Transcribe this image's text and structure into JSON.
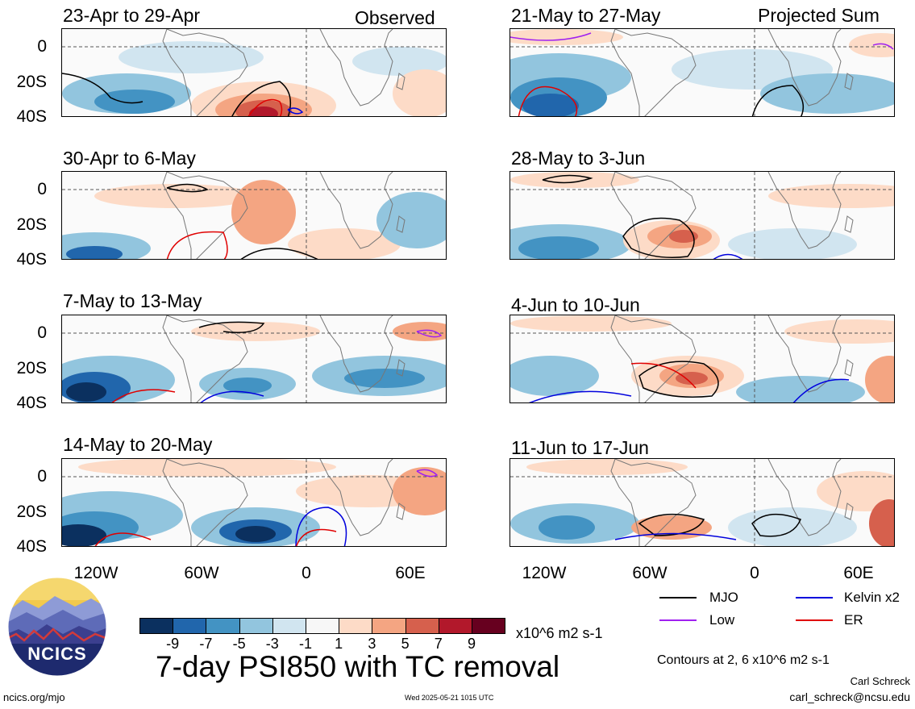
{
  "panels": [
    {
      "id": "p1",
      "title": "23-Apr to 29-Apr",
      "label": "Observed"
    },
    {
      "id": "p2",
      "title": "30-Apr to 6-May",
      "label": ""
    },
    {
      "id": "p3",
      "title": "7-May to 13-May",
      "label": ""
    },
    {
      "id": "p4",
      "title": "14-May to 20-May",
      "label": ""
    },
    {
      "id": "p5",
      "title": "21-May to 27-May",
      "label": "Projected Sum"
    },
    {
      "id": "p6",
      "title": "28-May to 3-Jun",
      "label": ""
    },
    {
      "id": "p7",
      "title": "4-Jun to 10-Jun",
      "label": ""
    },
    {
      "id": "p8",
      "title": "11-Jun to 17-Jun",
      "label": ""
    }
  ],
  "lat_labels": [
    "0",
    "20S",
    "40S"
  ],
  "lon_labels": [
    "120W",
    "60W",
    "0",
    "60E"
  ],
  "colorbar": {
    "labels": [
      "-9",
      "-7",
      "-5",
      "-3",
      "-1",
      "1",
      "3",
      "5",
      "7",
      "9"
    ],
    "colors": [
      "#0b305f",
      "#2166ac",
      "#4393c3",
      "#92c5de",
      "#d1e5f0",
      "#f7f7f7",
      "#fddbc7",
      "#f4a582",
      "#d6604d",
      "#b2182b",
      "#67001f"
    ],
    "units": "x10^6 m2 s-1"
  },
  "legend": {
    "items": [
      {
        "label": "MJO",
        "color": "#000000"
      },
      {
        "label": "Kelvin x2",
        "color": "#0000dd"
      },
      {
        "label": "Low",
        "color": "#a020f0"
      },
      {
        "label": "ER",
        "color": "#e00000"
      }
    ],
    "contours_note": "Contours at 2, 6 x10^6 m2 s-1"
  },
  "main_title": "7-day PSI850 with TC removal",
  "logo_text": "NCICS",
  "footer": {
    "left": "ncics.org/mjo",
    "center": "Wed 2025-05-21 1015 UTC",
    "author": "Carl Schreck",
    "email": "carl_schreck@ncsu.edu"
  }
}
